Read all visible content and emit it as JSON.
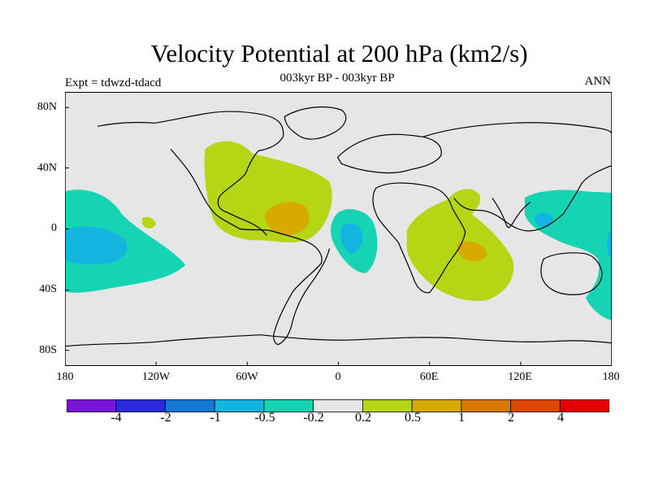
{
  "title": "Velocity Potential at 200 hPa (km2/s)",
  "subtitle": "003kyr BP - 003kyr BP",
  "left_label": "Expt = tdwzd-tdacd",
  "right_label": "ANN",
  "y_ticks": [
    "80N",
    "40N",
    "0",
    "40S",
    "80S"
  ],
  "x_ticks": [
    "180",
    "120W",
    "60W",
    "0",
    "60E",
    "120E",
    "180"
  ],
  "colorbar": {
    "colors": [
      "#7a14d8",
      "#2a2ad8",
      "#1478d4",
      "#14b4e0",
      "#14d4b4",
      "#e6e6e6",
      "#b4d614",
      "#d6aa00",
      "#d87a00",
      "#dc4800",
      "#e60000"
    ],
    "labels": [
      "-4",
      "-2",
      "-1",
      "-0.5",
      "-0.2",
      "0.2",
      "0.5",
      "1",
      "2",
      "4"
    ]
  }
}
